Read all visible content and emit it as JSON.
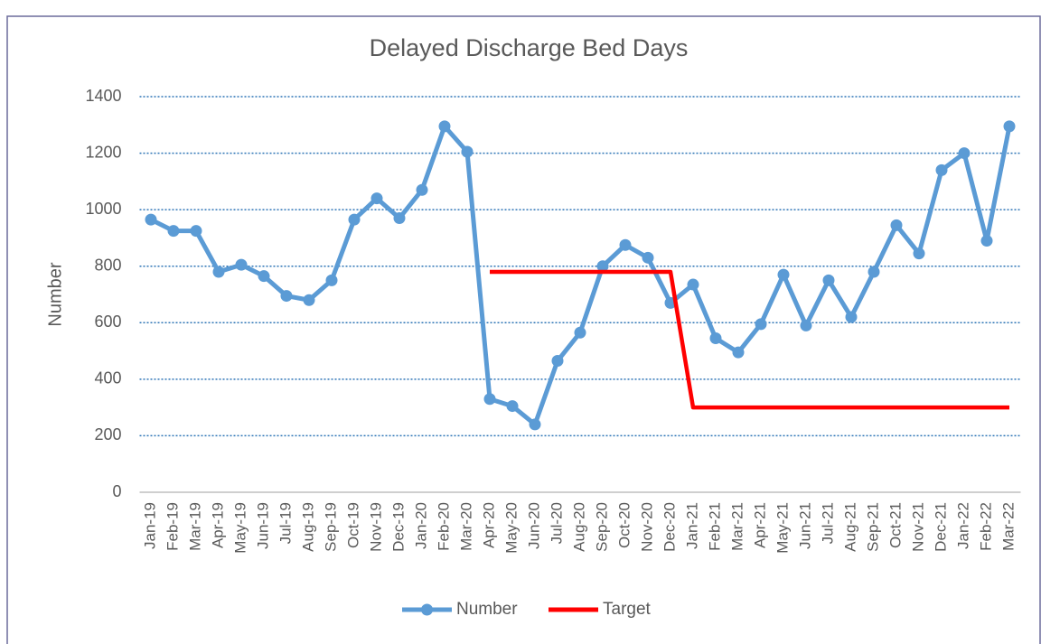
{
  "chart_data": {
    "type": "line",
    "title": "Delayed Discharge Bed Days",
    "ylabel": "Number",
    "categories": [
      "Jan-19",
      "Feb-19",
      "Mar-19",
      "Apr-19",
      "May-19",
      "Jun-19",
      "Jul-19",
      "Aug-19",
      "Sep-19",
      "Oct-19",
      "Nov-19",
      "Dec-19",
      "Jan-20",
      "Feb-20",
      "Mar-20",
      "Apr-20",
      "May-20",
      "Jun-20",
      "Jul-20",
      "Aug-20",
      "Sep-20",
      "Oct-20",
      "Nov-20",
      "Dec-20",
      "Jan-21",
      "Feb-21",
      "Mar-21",
      "Apr-21",
      "May-21",
      "Jun-21",
      "Jul-21",
      "Aug-21",
      "Sep-21",
      "Oct-21",
      "Nov-21",
      "Dec-21",
      "Jan-22",
      "Feb-22",
      "Mar-22"
    ],
    "series": [
      {
        "name": "Number",
        "color": "#5b9bd5",
        "marker": true,
        "values": [
          965,
          925,
          925,
          780,
          805,
          765,
          695,
          680,
          750,
          965,
          1040,
          970,
          1070,
          1295,
          1205,
          330,
          305,
          240,
          465,
          565,
          800,
          875,
          830,
          670,
          735,
          545,
          495,
          595,
          770,
          590,
          750,
          620,
          780,
          945,
          845,
          1140,
          1200,
          890,
          1295
        ]
      },
      {
        "name": "Target",
        "color": "#ff0000",
        "marker": false,
        "values": [
          null,
          null,
          null,
          null,
          null,
          null,
          null,
          null,
          null,
          null,
          null,
          null,
          null,
          null,
          null,
          780,
          780,
          780,
          780,
          780,
          780,
          780,
          780,
          780,
          300,
          300,
          300,
          300,
          300,
          300,
          300,
          300,
          300,
          300,
          300,
          300,
          300,
          300,
          300
        ]
      }
    ],
    "ylim": [
      0,
      1400
    ],
    "yticks": [
      0,
      200,
      400,
      600,
      800,
      1000,
      1200,
      1400
    ],
    "grid": true,
    "legend": "bottom"
  }
}
